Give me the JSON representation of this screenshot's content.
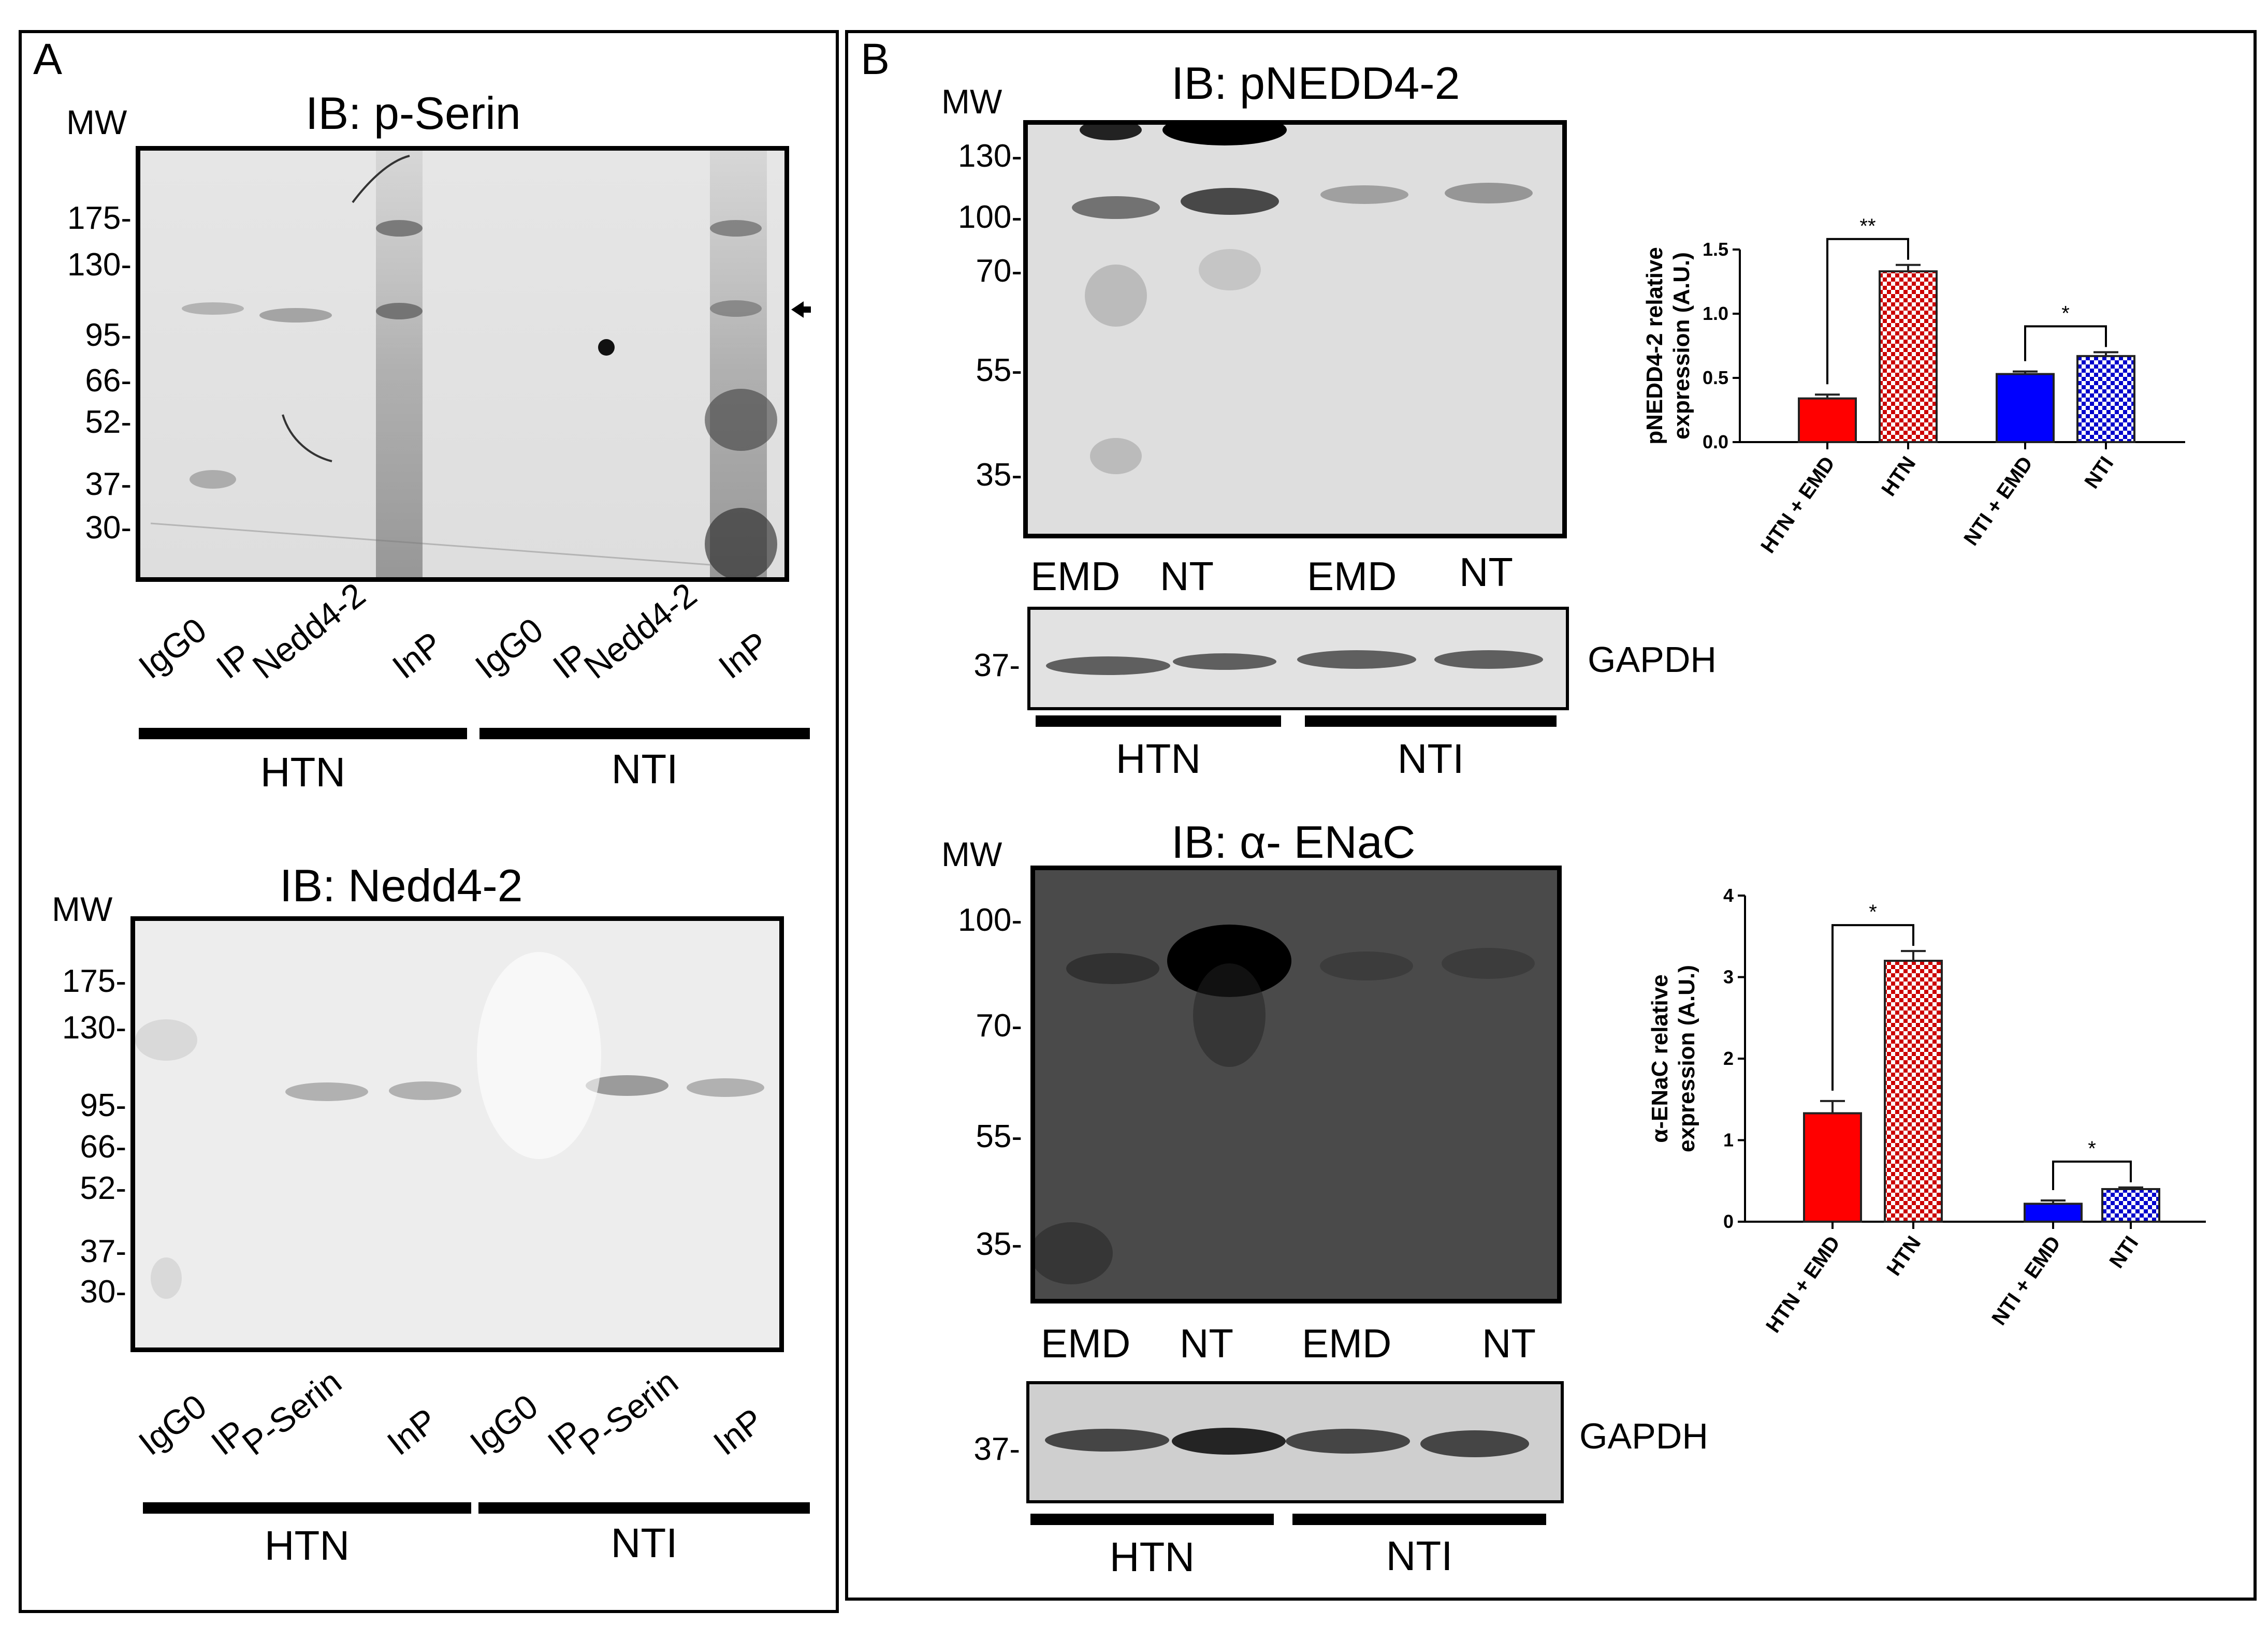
{
  "panelA": {
    "label": "A",
    "top": {
      "title": "IB: p-Serin",
      "mw_label": "MW",
      "mw_ticks": [
        "175-",
        "130-",
        "95-",
        "66-",
        "52-",
        "37-",
        "30-"
      ],
      "lanes": [
        "IgG0",
        "IP",
        "Nedd4-2",
        "InP",
        "IgG0",
        "IP",
        "Nedd4-2",
        "InP"
      ],
      "groups": [
        "HTN",
        "NTI"
      ]
    },
    "bottom": {
      "title": "IB: Nedd4-2",
      "mw_label": "MW",
      "mw_ticks": [
        "175-",
        "130-",
        "95-",
        "66-",
        "52-",
        "37-",
        "30-"
      ],
      "lanes": [
        "IgG0",
        "IP",
        "P-Serin",
        "InP",
        "IgG0",
        "IP",
        "P-Serin",
        "InP"
      ],
      "groups": [
        "HTN",
        "NTI"
      ]
    }
  },
  "panelB": {
    "label": "B",
    "top": {
      "title": "IB: pNEDD4-2",
      "mw_label": "MW",
      "mw_ticks": [
        "130-",
        "100-",
        "70-",
        "55-",
        "35-"
      ],
      "columns": [
        "EMD",
        "NT",
        "EMD",
        "NT"
      ],
      "gapdh_tick": "37-",
      "gapdh_label": "GAPDH",
      "groups": [
        "HTN",
        "NTI"
      ]
    },
    "bottom": {
      "title": "IB: α- ENaC",
      "mw_label": "MW",
      "mw_ticks": [
        "100-",
        "70-",
        "55-",
        "35-"
      ],
      "columns": [
        "EMD",
        "NT",
        "EMD",
        "NT"
      ],
      "gapdh_tick": "37-",
      "gapdh_label": "GAPDH",
      "groups": [
        "HTN",
        "NTI"
      ]
    }
  },
  "chart_data": [
    {
      "type": "bar",
      "ylabel": "pNEDD4-2 relative expression (A.U.)",
      "categories": [
        "HTN + EMD",
        "HTN",
        "NTI + EMD",
        "NTI"
      ],
      "values": [
        0.34,
        1.33,
        0.53,
        0.67
      ],
      "errors": [
        0.03,
        0.05,
        0.02,
        0.03
      ],
      "ylim": [
        0,
        1.5
      ],
      "yticks": [
        "0.0",
        "0.5",
        "1.0",
        "1.5"
      ],
      "colors": [
        "#ff0000",
        "#cc0000",
        "#0000ff",
        "#0000cc"
      ],
      "patterns": [
        "solid",
        "checker",
        "solid",
        "checker"
      ],
      "significance": [
        {
          "from": 0,
          "to": 1,
          "label": "**"
        },
        {
          "from": 2,
          "to": 3,
          "label": "*"
        }
      ]
    },
    {
      "type": "bar",
      "ylabel": "α-ENaC relative expression (A.U.)",
      "categories": [
        "HTN + EMD",
        "HTN",
        "NTI + EMD",
        "NTI"
      ],
      "values": [
        1.33,
        3.2,
        0.22,
        0.4
      ],
      "errors": [
        0.15,
        0.12,
        0.04,
        0.02
      ],
      "ylim": [
        0,
        4
      ],
      "yticks": [
        "0",
        "1",
        "2",
        "3",
        "4"
      ],
      "colors": [
        "#ff0000",
        "#cc0000",
        "#0000ff",
        "#0000cc"
      ],
      "patterns": [
        "solid",
        "checker",
        "solid",
        "checker"
      ],
      "significance": [
        {
          "from": 0,
          "to": 1,
          "label": "*"
        },
        {
          "from": 2,
          "to": 3,
          "label": "*"
        }
      ]
    }
  ]
}
